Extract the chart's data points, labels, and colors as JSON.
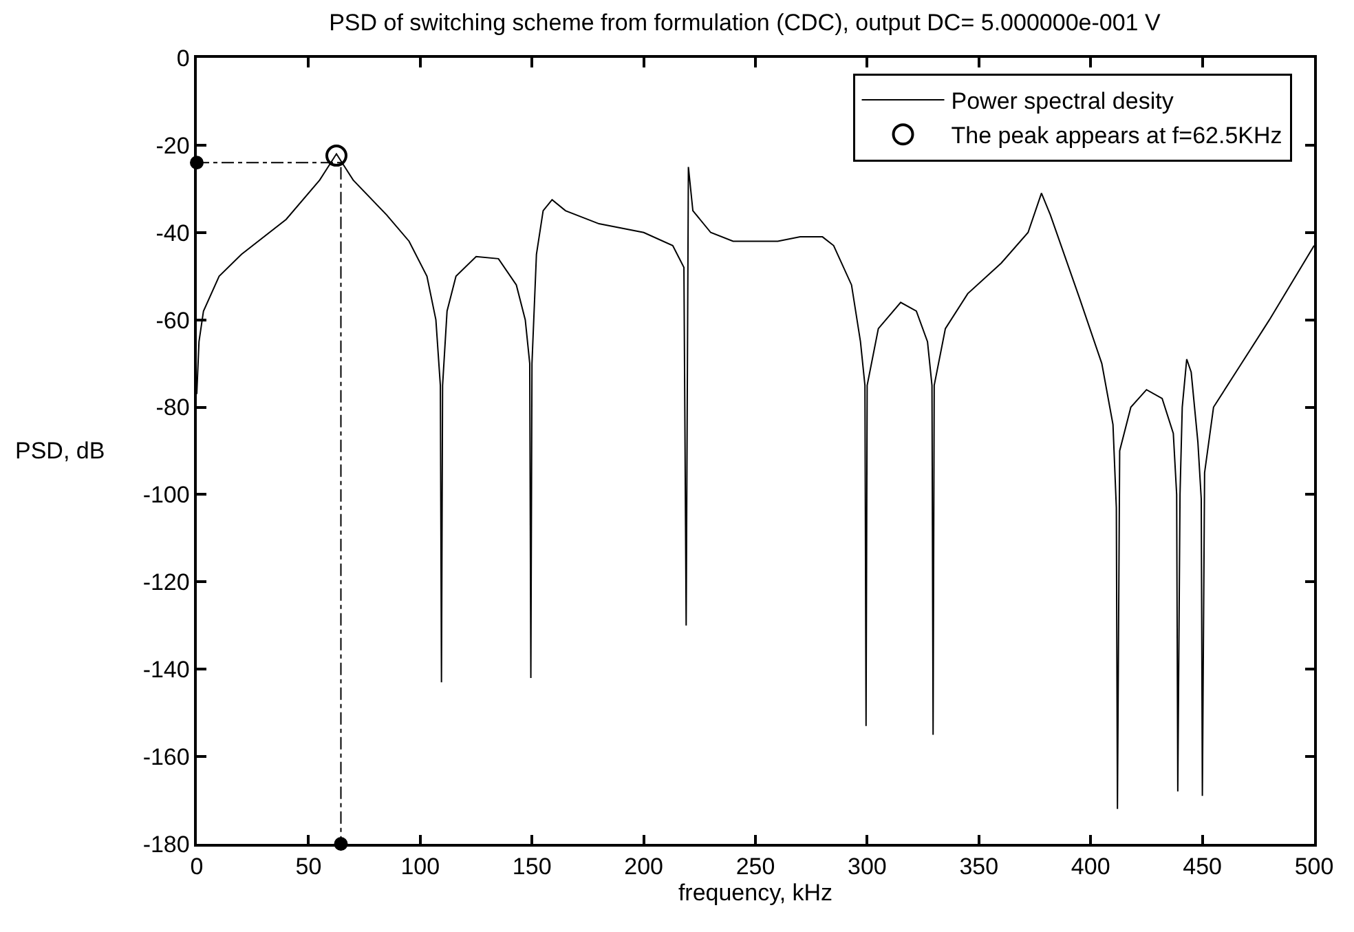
{
  "chart_data": {
    "type": "line",
    "title": "PSD of switching scheme from formulation (CDC), output DC= 5.000000e-001 V",
    "xlabel": "frequency, kHz",
    "ylabel": "PSD, dB",
    "xlim": [
      0,
      500
    ],
    "ylim": [
      -180,
      0
    ],
    "xticks": [
      0,
      50,
      100,
      150,
      200,
      250,
      300,
      350,
      400,
      450,
      500
    ],
    "yticks": [
      0,
      -20,
      -40,
      -60,
      -80,
      -100,
      -120,
      -140,
      -160,
      -180
    ],
    "legend": "top right",
    "series": [
      {
        "name": "Power spectral desity",
        "color": "#000000",
        "marker": "none",
        "line_style": "solid",
        "x": [
          0,
          1,
          3,
          10,
          20,
          40,
          55,
          60,
          62.5,
          65,
          70,
          85,
          95,
          103,
          107,
          109,
          109.5,
          110,
          112,
          116,
          125,
          135,
          143,
          147,
          149,
          149.5,
          150,
          152,
          155,
          159,
          165,
          180,
          200,
          213,
          218,
          219,
          220,
          222,
          230,
          240,
          260,
          270,
          280,
          285,
          293,
          297,
          299,
          299.5,
          300,
          305,
          315,
          322,
          327,
          329,
          329.5,
          330,
          335,
          345,
          360,
          372,
          378,
          382,
          395,
          405,
          410,
          411.5,
          412,
          413,
          418,
          425,
          432,
          437,
          438.5,
          439,
          440,
          441,
          443,
          445,
          448,
          449.5,
          450,
          451,
          455,
          465,
          480,
          500
        ],
        "values": [
          -77,
          -65,
          -58,
          -50,
          -45,
          -37,
          -28,
          -24,
          -22,
          -24,
          -28,
          -36,
          -42,
          -50,
          -60,
          -75,
          -143,
          -75,
          -58,
          -50,
          -45.5,
          -46,
          -52,
          -60,
          -70,
          -142,
          -70,
          -45,
          -35,
          -32.5,
          -35,
          -38,
          -40,
          -43,
          -48,
          -130,
          -25,
          -35,
          -40,
          -42,
          -42,
          -41,
          -41,
          -43,
          -52,
          -65,
          -75,
          -153,
          -75,
          -62,
          -56,
          -58,
          -65,
          -75,
          -155,
          -75,
          -62,
          -54,
          -47,
          -40,
          -31,
          -36,
          -55,
          -70,
          -84,
          -103,
          -172,
          -90,
          -80,
          -76,
          -78,
          -86,
          -100,
          -168,
          -100,
          -80,
          -69,
          -72,
          -88,
          -101,
          -169,
          -95,
          -80,
          -72,
          -60,
          -43
        ]
      },
      {
        "name": "The peak appears at f=62.5KHz",
        "color": "#000000",
        "type": "scatter",
        "marker": "circle-open",
        "x": [
          62.5
        ],
        "values": [
          -22.4
        ]
      },
      {
        "color": "#000000",
        "type": "line",
        "marker": "none",
        "line_style": "dashdot",
        "x": [
          0,
          64.5,
          64.5
        ],
        "values": [
          -24,
          -24,
          -180
        ]
      },
      {
        "color": "#000000",
        "type": "scatter",
        "marker": "circle",
        "x": [
          0,
          64.5
        ],
        "values": [
          -24,
          -180
        ]
      }
    ]
  }
}
